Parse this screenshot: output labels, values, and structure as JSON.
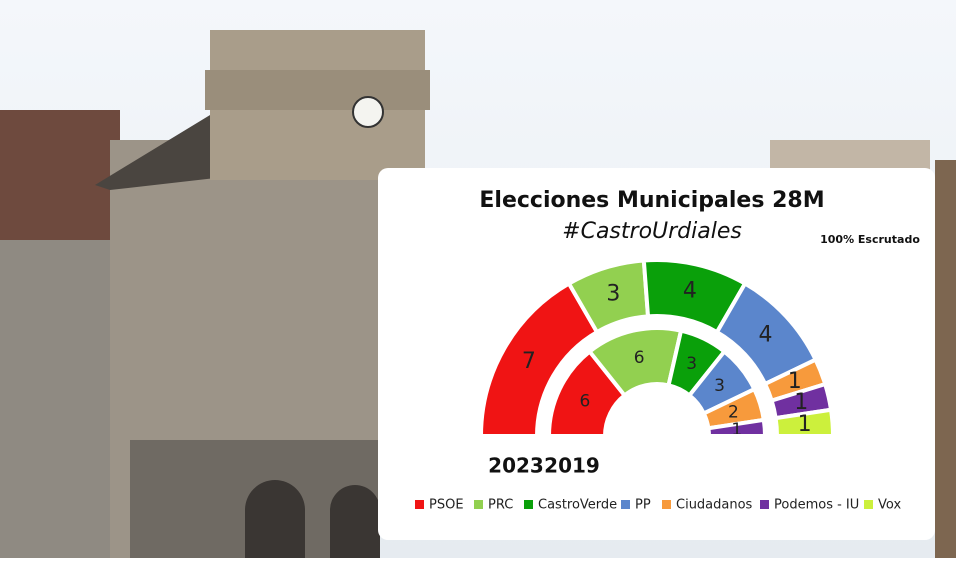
{
  "chart_data": {
    "type": "pie",
    "title": "Elecciones Municipales 28M",
    "subtitle": "#CastroUrdiales",
    "annotation": "100% Escrutado",
    "categories": [
      "PSOE",
      "PRC",
      "CastroVerde",
      "PP",
      "Ciudadanos",
      "Podemos - IU",
      "Vox"
    ],
    "colors": [
      "#f01414",
      "#92d050",
      "#0aa00a",
      "#5b86cc",
      "#f79a3c",
      "#7030a0",
      "#ccf03c"
    ],
    "series": [
      {
        "name": "2023",
        "values": [
          7,
          3,
          4,
          4,
          1,
          1,
          1
        ]
      },
      {
        "name": "2019",
        "values": [
          6,
          6,
          3,
          3,
          2,
          1,
          0
        ]
      }
    ]
  }
}
